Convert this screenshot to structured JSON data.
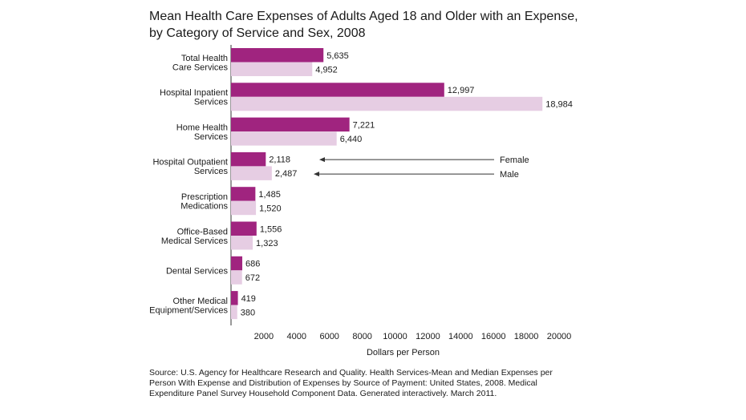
{
  "chart_data": {
    "type": "bar",
    "orientation": "horizontal",
    "title_lines": [
      "Mean Health Care Expenses of Adults Aged 18 and Older with an Expense,",
      "by Category of Service and Sex, 2008"
    ],
    "categories": [
      [
        "Total Health",
        "Care Services"
      ],
      [
        "Hospital Inpatient",
        "Services"
      ],
      [
        "Home Health",
        "Services"
      ],
      [
        "Hospital Outpatient",
        "Services"
      ],
      [
        "Prescription",
        "Medications"
      ],
      [
        "Office-Based",
        "Medical Services"
      ],
      [
        "Dental Services"
      ],
      [
        "Other Medical",
        "Equipment/Services"
      ]
    ],
    "series": [
      {
        "name": "Female",
        "color": "#a0247f",
        "values": [
          5635,
          12997,
          7221,
          2118,
          1485,
          1556,
          686,
          419
        ],
        "labels": [
          "5,635",
          "12,997",
          "7,221",
          "2,118",
          "1,485",
          "1,556",
          "686",
          "419"
        ]
      },
      {
        "name": "Male",
        "color": "#e6cde3",
        "values": [
          4952,
          18984,
          6440,
          2487,
          1520,
          1323,
          672,
          380
        ],
        "labels": [
          "4,952",
          "18,984",
          "6,440",
          "2,487",
          "1,520",
          "1,323",
          "672",
          "380"
        ]
      }
    ],
    "xlabel": "Dollars per Person",
    "xlim": [
      0,
      20000
    ],
    "xticks": [
      2000,
      4000,
      6000,
      8000,
      10000,
      12000,
      14000,
      16000,
      18000,
      20000
    ],
    "xtick_labels": [
      "2000",
      "4000",
      "6000",
      "8000",
      "10000",
      "12000",
      "14000",
      "16000",
      "18000",
      "20000"
    ],
    "legend": {
      "placement": "callout-right",
      "female": "Female",
      "male": "Male"
    },
    "grid": false
  },
  "source": [
    "Source: U.S. Agency for Healthcare Research and Quality. Health Services-Mean and Median Expenses per",
    "Person With Expense and Distribution of Expenses by Source of Payment: United States, 2008. Medical",
    "Expenditure Panel Survey Household Component Data. Generated interactively. March 2011."
  ]
}
